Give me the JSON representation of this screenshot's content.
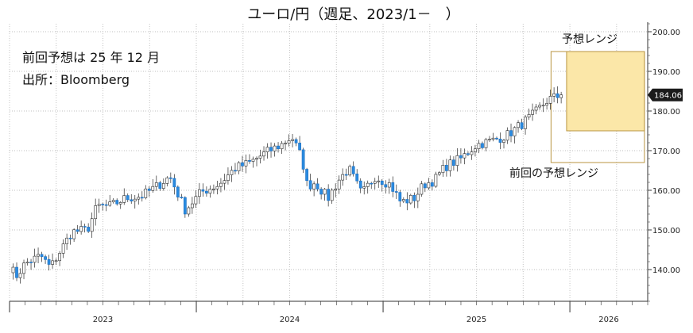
{
  "chart_data": {
    "type": "candlestick",
    "title": "ユーロ/円（週足、2023/1－　）",
    "notes": [
      "前回予想は 25 年 12 月",
      "出所：Bloomberg"
    ],
    "y_ticks": [
      "140.00",
      "150.00",
      "160.00",
      "170.00",
      "180.00",
      "190.00",
      "200.00"
    ],
    "ylim": [
      132,
      202
    ],
    "x_ticks": [
      "2023",
      "2024",
      "2025",
      "2026"
    ],
    "x_range": [
      "2023-01",
      "2026-06"
    ],
    "last_value": "184.06",
    "forecast_range": {
      "label": "予想レンジ",
      "low": 175,
      "high": 195
    },
    "previous_forecast_range": {
      "label": "前回の予想レンジ",
      "low": 167,
      "high": 195
    },
    "weekly_close_anchors": [
      [
        "2023-01-01",
        140.5
      ],
      [
        "2023-01-15",
        138.5
      ],
      [
        "2023-02-01",
        141.5
      ],
      [
        "2023-03-01",
        143.5
      ],
      [
        "2023-03-20",
        140.5
      ],
      [
        "2023-04-15",
        146
      ],
      [
        "2023-05-01",
        149.5
      ],
      [
        "2023-06-01",
        150
      ],
      [
        "2023-06-20",
        156
      ],
      [
        "2023-07-15",
        156
      ],
      [
        "2023-08-15",
        158
      ],
      [
        "2023-09-15",
        158.5
      ],
      [
        "2023-10-15",
        161
      ],
      [
        "2023-11-10",
        163.5
      ],
      [
        "2023-12-10",
        155
      ],
      [
        "2024-01-10",
        159.5
      ],
      [
        "2024-02-15",
        161.5
      ],
      [
        "2024-03-15",
        165.5
      ],
      [
        "2024-04-15",
        167
      ],
      [
        "2024-05-15",
        169.5
      ],
      [
        "2024-06-15",
        171.5
      ],
      [
        "2024-07-05",
        173.5
      ],
      [
        "2024-07-25",
        168
      ],
      [
        "2024-08-05",
        161
      ],
      [
        "2024-08-20",
        162
      ],
      [
        "2024-09-15",
        158
      ],
      [
        "2024-10-05",
        162.5
      ],
      [
        "2024-10-25",
        165.5
      ],
      [
        "2024-11-20",
        159
      ],
      [
        "2024-12-15",
        163.5
      ],
      [
        "2025-01-15",
        161.5
      ],
      [
        "2025-02-05",
        157
      ],
      [
        "2025-03-01",
        158
      ],
      [
        "2025-03-20",
        161.5
      ],
      [
        "2025-04-10",
        162.5
      ],
      [
        "2025-05-01",
        166
      ],
      [
        "2025-06-01",
        168
      ],
      [
        "2025-07-01",
        171.5
      ],
      [
        "2025-08-01",
        172.5
      ],
      [
        "2025-09-01",
        174
      ],
      [
        "2025-10-01",
        177
      ],
      [
        "2025-10-20",
        179
      ],
      [
        "2025-11-20",
        183
      ],
      [
        "2025-12-20",
        184.06
      ]
    ],
    "colors": {
      "up": "#ffffff",
      "down": "#2a8be0",
      "band_fill": "#fbe7a8",
      "band_border": "#b99542",
      "last_label_bg": "#1b1b1b"
    }
  }
}
